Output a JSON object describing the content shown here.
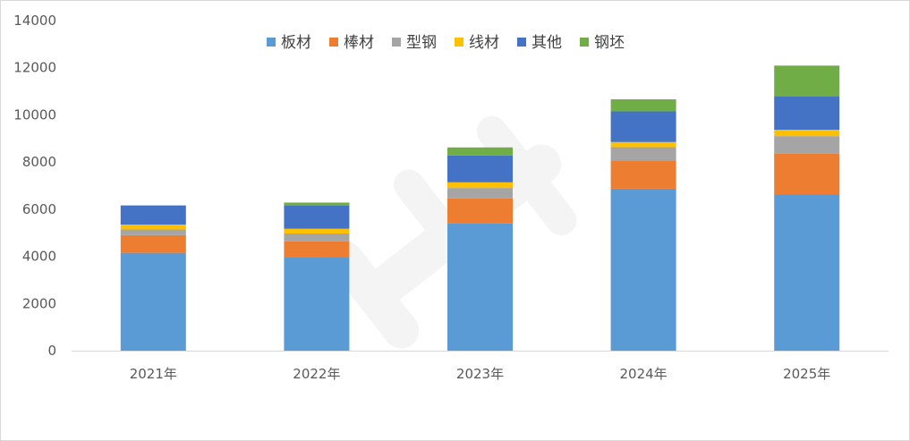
{
  "chart_data": {
    "type": "bar",
    "stacked": true,
    "categories": [
      "2021年",
      "2022年",
      "2023年",
      "2024年",
      "2025年"
    ],
    "ylim": [
      0,
      14000
    ],
    "yticks": [
      0,
      2000,
      4000,
      6000,
      8000,
      10000,
      12000,
      14000
    ],
    "grid": false,
    "legend_position": "top-center",
    "series": [
      {
        "name": "板材",
        "color": "#5b9bd5",
        "values": [
          4150,
          3980,
          5400,
          6870,
          6620
        ]
      },
      {
        "name": "棒材",
        "color": "#ed7d31",
        "values": [
          750,
          660,
          1060,
          1190,
          1740
        ]
      },
      {
        "name": "型钢",
        "color": "#a5a5a5",
        "values": [
          240,
          330,
          440,
          570,
          740
        ]
      },
      {
        "name": "线材",
        "color": "#ffc000",
        "values": [
          210,
          200,
          240,
          220,
          270
        ]
      },
      {
        "name": "其他",
        "color": "#4472c4",
        "values": [
          810,
          990,
          1140,
          1300,
          1420
        ]
      },
      {
        "name": "钢坯",
        "color": "#70ad47",
        "values": [
          0,
          120,
          340,
          510,
          1300
        ]
      }
    ]
  }
}
